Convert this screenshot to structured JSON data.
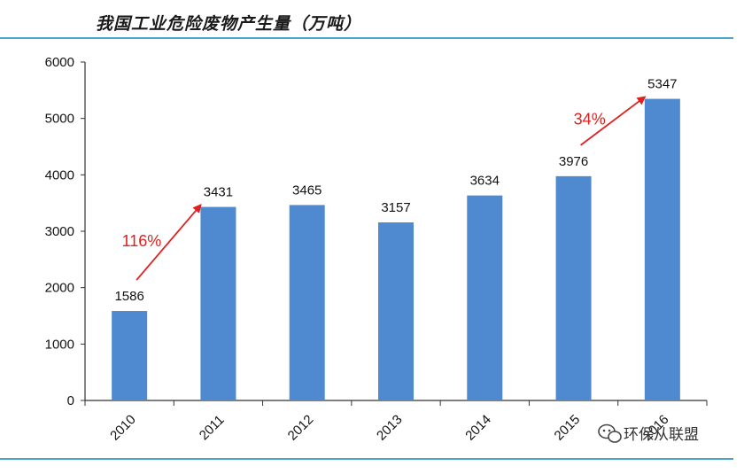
{
  "header": {
    "title": "我国工业危险废物产生量（万吨）"
  },
  "watermark": {
    "text": "环保从联盟",
    "icon": "wechat-icon"
  },
  "colors": {
    "bar": "#4f8ad0",
    "arrow": "#e02020",
    "rule": "#4aa6c8",
    "axis": "#333333"
  },
  "chart_data": {
    "type": "bar",
    "title": "我国工业危险废物产生量（万吨）",
    "xlabel": "",
    "ylabel": "",
    "ylim": [
      0,
      6000
    ],
    "yticks": [
      0,
      1000,
      2000,
      3000,
      4000,
      5000,
      6000
    ],
    "categories": [
      "2010",
      "2011",
      "2012",
      "2013",
      "2014",
      "2015",
      "2016"
    ],
    "values": [
      1586,
      3431,
      3465,
      3157,
      3634,
      3976,
      5347
    ],
    "data_labels": [
      "1586",
      "3431",
      "3465",
      "3157",
      "3634",
      "3976",
      "5347"
    ],
    "grid": false,
    "legend": "none",
    "annotations": [
      {
        "text": "116%",
        "from_category": "2010",
        "to_category": "2011"
      },
      {
        "text": "34%",
        "from_category": "2015",
        "to_category": "2016"
      }
    ]
  }
}
